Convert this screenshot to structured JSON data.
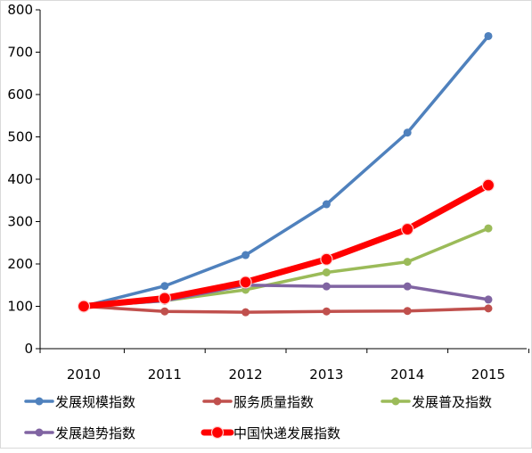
{
  "chart_data": {
    "type": "line",
    "title": "",
    "xlabel": "",
    "ylabel": "",
    "categories": [
      "2010",
      "2011",
      "2012",
      "2013",
      "2014",
      "2015"
    ],
    "ylim": [
      0,
      800
    ],
    "y_ticks": [
      "0",
      "100",
      "200",
      "300",
      "400",
      "500",
      "600",
      "700",
      "800"
    ],
    "grid": false,
    "legend_position": "bottom",
    "series": [
      {
        "name": "发展规模指数",
        "color": "#4f81bd",
        "values": [
          100,
          148,
          221,
          341,
          510,
          738
        ]
      },
      {
        "name": "服务质量指数",
        "color": "#c0504d",
        "values": [
          100,
          88,
          86,
          88,
          89,
          95
        ]
      },
      {
        "name": "发展普及指数",
        "color": "#9bbb59",
        "values": [
          100,
          113,
          139,
          180,
          205,
          284
        ]
      },
      {
        "name": "发展趋势指数",
        "color": "#8064a2",
        "values": [
          100,
          113,
          150,
          147,
          147,
          116
        ]
      },
      {
        "name": "中国快递发展指数",
        "color": "#ff0000",
        "values": [
          100,
          119,
          157,
          211,
          282,
          386
        ],
        "emphasis": true
      }
    ]
  }
}
